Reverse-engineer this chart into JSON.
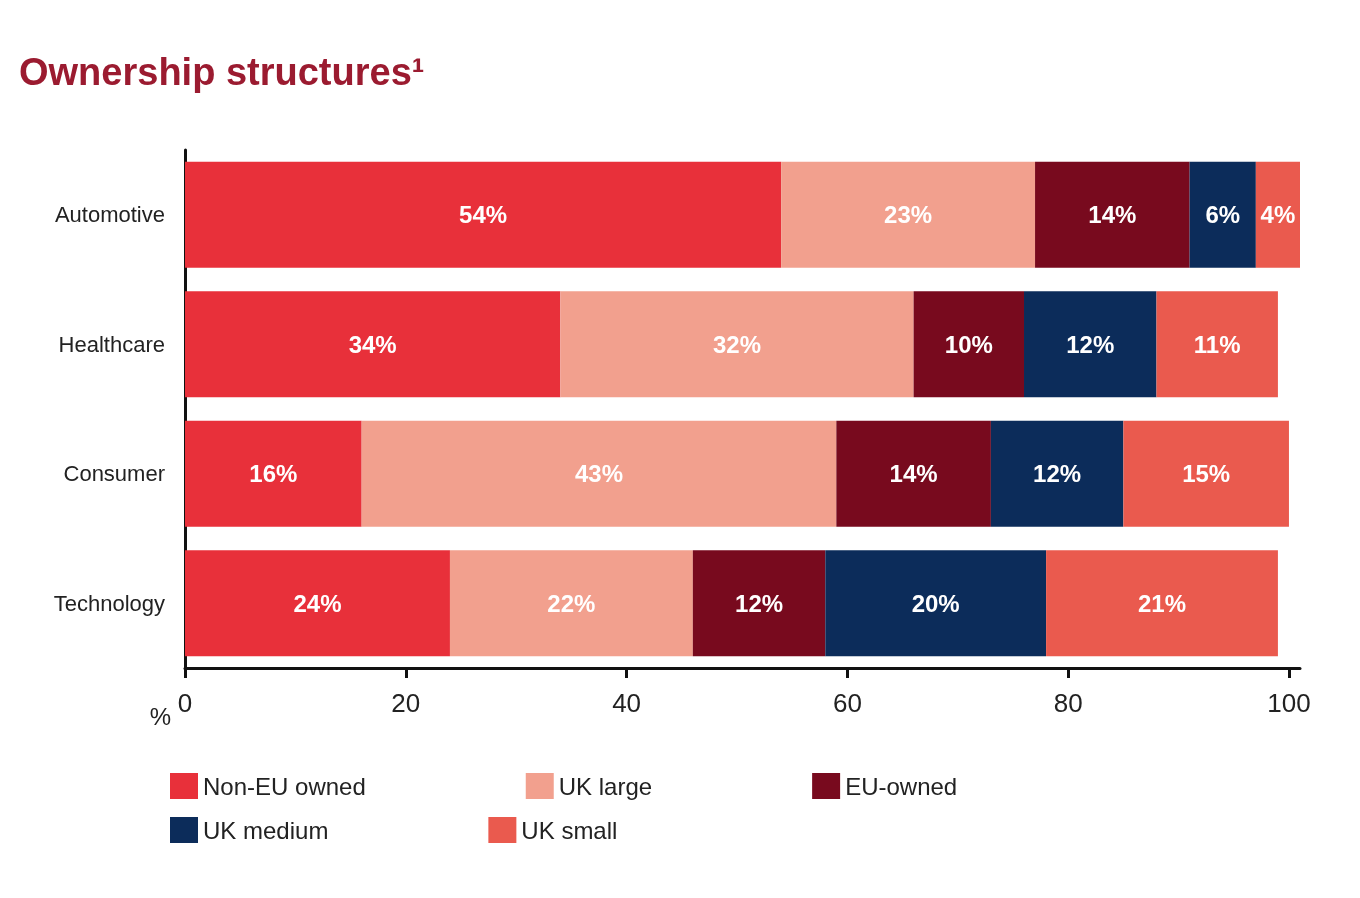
{
  "chart_data": {
    "type": "bar",
    "orientation": "horizontal",
    "stacked": true,
    "title": "Ownership structures¹",
    "xlabel": "%",
    "categories": [
      "Automotive",
      "Healthcare",
      "Consumer",
      "Technology"
    ],
    "series": [
      {
        "name": "Non-EU owned",
        "color": "#e8303a",
        "values": [
          54,
          34,
          16,
          24
        ],
        "value_labels": [
          "54%",
          "34%",
          "16%",
          "24%"
        ]
      },
      {
        "name": "UK large",
        "color": "#f2a08e",
        "values": [
          23,
          32,
          43,
          22
        ],
        "value_labels": [
          "23%",
          "32%",
          "43%",
          "22%"
        ]
      },
      {
        "name": "EU-owned",
        "color": "#780a1e",
        "values": [
          14,
          10,
          14,
          12
        ],
        "value_labels": [
          "14%",
          "10%",
          "14%",
          "12%"
        ]
      },
      {
        "name": "UK medium",
        "color": "#0c2c5a",
        "values": [
          6,
          12,
          12,
          20
        ],
        "value_labels": [
          "6%",
          "12%",
          "12%",
          "20%"
        ]
      },
      {
        "name": "UK small",
        "color": "#ea5a4e",
        "values": [
          4,
          11,
          15,
          21
        ],
        "value_labels": [
          "4%",
          "11%",
          "15%",
          "21%"
        ]
      }
    ],
    "xlim": [
      0,
      101
    ],
    "xticks": [
      0,
      20,
      40,
      60,
      80,
      100
    ],
    "grid": false,
    "legend": "bottom"
  }
}
